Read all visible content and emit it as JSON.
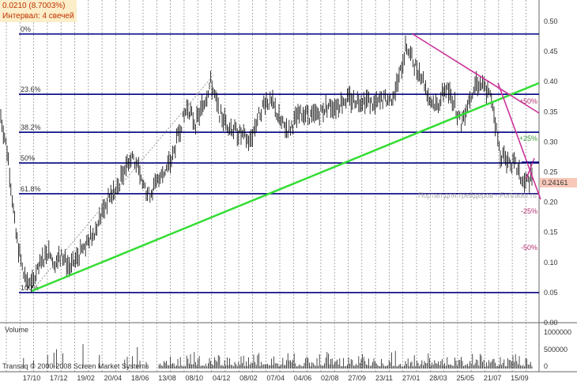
{
  "info": {
    "change": "0.0210 (8.7003%)",
    "interval": "Интервал: 4 свечей"
  },
  "chart_data": {
    "type": "bar",
    "subtype": "ohlc-price-with-volume",
    "x_tick_labels": [
      "17/10",
      "17/12",
      "19/02",
      "20/04",
      "18/06",
      "13/08",
      "08/10",
      "04/12",
      "08/02",
      "07/04",
      "04/06",
      "02/08",
      "27/09",
      "23/11",
      "27/01",
      "28/03",
      "25/05",
      "21/07",
      "15/09"
    ],
    "ylim": [
      0,
      0.5
    ],
    "y_ticks": [
      "0.50",
      "0.45",
      "0.40",
      "0.35",
      "0.30",
      "0.25",
      "0.20",
      "0.15",
      "0.10",
      "0.05",
      "0.00"
    ],
    "price_values": [
      0.35,
      0.28,
      0.15,
      0.08,
      0.06,
      0.09,
      0.12,
      0.1,
      0.11,
      0.09,
      0.11,
      0.13,
      0.15,
      0.18,
      0.21,
      0.22,
      0.26,
      0.28,
      0.24,
      0.21,
      0.23,
      0.25,
      0.27,
      0.32,
      0.36,
      0.33,
      0.36,
      0.4,
      0.35,
      0.33,
      0.32,
      0.31,
      0.3,
      0.34,
      0.37,
      0.36,
      0.33,
      0.32,
      0.34,
      0.35,
      0.34,
      0.35,
      0.36,
      0.36,
      0.37,
      0.37,
      0.37,
      0.37,
      0.36,
      0.37,
      0.37,
      0.4,
      0.46,
      0.43,
      0.41,
      0.37,
      0.36,
      0.39,
      0.37,
      0.33,
      0.37,
      0.4,
      0.39,
      0.37,
      0.28,
      0.27,
      0.26,
      0.23,
      0.24
    ],
    "last_price": "0.24161",
    "fibonacci": [
      {
        "label": "0%",
        "value": 0.479
      },
      {
        "label": "23.6%",
        "value": 0.379
      },
      {
        "label": "38.2%",
        "value": 0.316
      },
      {
        "label": "50%",
        "value": 0.265
      },
      {
        "label": "61.8%",
        "value": 0.214
      },
      {
        "label": "100%",
        "value": 0.05
      }
    ],
    "channel_labels": [
      "+50%",
      "+25%",
      "-25%",
      "-50%"
    ],
    "volume": {
      "label": "Volume",
      "ylim": [
        0,
        1000000
      ],
      "y_ticks": [
        "1000000",
        "500000",
        "0"
      ]
    },
    "watermark": "Портал для трейдеров - Fortrader.ru",
    "copyright": "Transaq © 2000-2008 Screen Market Systems",
    "colors": {
      "fib": "#000080",
      "trend_up": "#33dd33",
      "trend_down": "#cc3399",
      "bars": "#000000",
      "last_price_bg": "#f8c8b8"
    }
  }
}
